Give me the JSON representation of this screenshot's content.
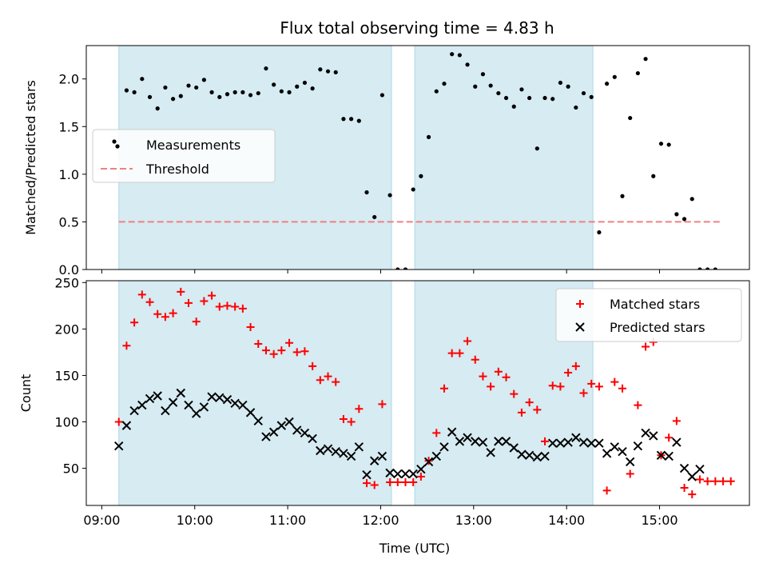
{
  "title": "Flux total observing time = 4.83 h",
  "colors": {
    "measurement": "#000000",
    "threshold": "#f08080",
    "matched": "#ff0000",
    "predicted": "#000000",
    "shade": "#add8e6"
  },
  "chart_data": [
    {
      "type": "scatter",
      "panel": "top",
      "ylabel": "Matched/Predicted stars",
      "xlim": [
        "08:50",
        "15:58"
      ],
      "ylim": [
        0,
        2.35
      ],
      "yticks": [
        "0.0",
        "0.5",
        "1.0",
        "1.5",
        "2.0"
      ],
      "shaded_intervals": [
        [
          "09:11",
          "12:07"
        ],
        [
          "12:22",
          "14:17"
        ]
      ],
      "threshold": {
        "name": "Threshold",
        "value": 0.5,
        "x_range": [
          "09:11",
          "15:40"
        ]
      },
      "legend": {
        "placement": "center-left",
        "entries": [
          "Measurements",
          "Threshold"
        ]
      },
      "series": [
        {
          "name": "Measurements",
          "marker": "dot",
          "x": [
            "09:16",
            "09:21",
            "09:26",
            "09:31",
            "09:36",
            "09:41",
            "09:46",
            "09:51",
            "09:56",
            "10:01",
            "10:06",
            "10:11",
            "10:16",
            "10:21",
            "10:26",
            "10:31",
            "10:36",
            "10:41",
            "10:46",
            "10:51",
            "10:56",
            "11:01",
            "11:06",
            "11:11",
            "11:16",
            "11:21",
            "11:26",
            "11:31",
            "11:36",
            "11:41",
            "11:46",
            "11:51",
            "11:56",
            "12:01",
            "12:06",
            "12:11",
            "12:16",
            "12:21",
            "12:26",
            "12:31",
            "12:36",
            "12:41",
            "12:46",
            "12:51",
            "12:56",
            "13:01",
            "13:06",
            "13:11",
            "13:16",
            "13:21",
            "13:26",
            "13:31",
            "13:36",
            "13:41",
            "13:46",
            "13:51",
            "13:56",
            "14:01",
            "14:06",
            "14:11",
            "14:16",
            "14:21",
            "14:26",
            "14:31",
            "14:36",
            "14:41",
            "14:46",
            "14:51",
            "14:56",
            "15:01",
            "15:06",
            "15:11",
            "15:16",
            "15:21",
            "15:26",
            "15:31",
            "15:36"
          ],
          "y": [
            1.88,
            1.86,
            2.0,
            1.81,
            1.69,
            1.91,
            1.79,
            1.82,
            1.93,
            1.91,
            1.99,
            1.86,
            1.81,
            1.84,
            1.86,
            1.86,
            1.83,
            1.85,
            2.11,
            1.94,
            1.87,
            1.86,
            1.92,
            1.96,
            1.9,
            2.1,
            2.08,
            2.07,
            1.58,
            1.58,
            1.56,
            0.81,
            0.55,
            1.83,
            0.78,
            0.0,
            0.0,
            0.84,
            0.98,
            1.39,
            1.87,
            1.95,
            2.26,
            2.25,
            2.15,
            1.92,
            2.05,
            1.93,
            1.85,
            1.8,
            1.71,
            1.89,
            1.8,
            1.27,
            1.8,
            1.79,
            1.96,
            1.92,
            1.7,
            1.85,
            1.81,
            0.39,
            1.95,
            2.02,
            0.77,
            1.59,
            2.06,
            2.21,
            0.98,
            1.32,
            1.31,
            0.58,
            0.53,
            0.74,
            0.0,
            0.0,
            0.0
          ]
        }
      ]
    },
    {
      "type": "scatter",
      "panel": "bottom",
      "xlabel": "Time (UTC)",
      "ylabel": "Count",
      "xlim": [
        "08:50",
        "15:58"
      ],
      "ylim": [
        10,
        252
      ],
      "xticks": [
        "09:00",
        "10:00",
        "11:00",
        "12:00",
        "13:00",
        "14:00",
        "15:00"
      ],
      "yticks": [
        "50",
        "100",
        "150",
        "200",
        "250"
      ],
      "shaded_intervals": [
        [
          "09:11",
          "12:07"
        ],
        [
          "12:22",
          "14:17"
        ]
      ],
      "legend": {
        "placement": "top-right",
        "entries": [
          "Matched stars",
          "Predicted stars"
        ]
      },
      "series": [
        {
          "name": "Matched stars",
          "marker": "plus",
          "x": [
            "09:11",
            "09:16",
            "09:21",
            "09:26",
            "09:31",
            "09:36",
            "09:41",
            "09:46",
            "09:51",
            "09:56",
            "10:01",
            "10:06",
            "10:11",
            "10:16",
            "10:21",
            "10:26",
            "10:31",
            "10:36",
            "10:41",
            "10:46",
            "10:51",
            "10:56",
            "11:01",
            "11:06",
            "11:11",
            "11:16",
            "11:21",
            "11:26",
            "11:31",
            "11:36",
            "11:41",
            "11:46",
            "11:51",
            "11:56",
            "12:01",
            "12:06",
            "12:11",
            "12:16",
            "12:21",
            "12:26",
            "12:31",
            "12:36",
            "12:41",
            "12:46",
            "12:51",
            "12:56",
            "13:01",
            "13:06",
            "13:11",
            "13:16",
            "13:21",
            "13:26",
            "13:31",
            "13:36",
            "13:41",
            "13:46",
            "13:51",
            "13:56",
            "14:01",
            "14:06",
            "14:11",
            "14:16",
            "14:21",
            "14:26",
            "14:31",
            "14:36",
            "14:41",
            "14:46",
            "14:51",
            "14:56",
            "15:01",
            "15:06",
            "15:11",
            "15:16",
            "15:21",
            "15:26",
            "15:31",
            "15:36",
            "15:41",
            "15:46"
          ],
          "y": [
            100,
            182,
            207,
            237,
            229,
            216,
            213,
            217,
            240,
            228,
            208,
            230,
            236,
            224,
            225,
            224,
            222,
            202,
            184,
            177,
            173,
            177,
            185,
            175,
            176,
            160,
            145,
            149,
            143,
            103,
            100,
            114,
            34,
            32,
            119,
            35,
            35,
            35,
            35,
            41,
            58,
            88,
            136,
            174,
            174,
            187,
            167,
            149,
            138,
            154,
            148,
            130,
            110,
            121,
            113,
            79,
            139,
            138,
            153,
            160,
            131,
            141,
            138,
            26,
            143,
            136,
            44,
            118,
            181,
            186,
            64,
            83,
            101,
            29,
            22,
            38,
            36,
            36,
            36,
            36
          ],
          "x_note": ""
        },
        {
          "name": "Predicted stars",
          "marker": "x",
          "x": [
            "09:11",
            "09:16",
            "09:21",
            "09:26",
            "09:31",
            "09:36",
            "09:41",
            "09:46",
            "09:51",
            "09:56",
            "10:01",
            "10:06",
            "10:11",
            "10:16",
            "10:21",
            "10:26",
            "10:31",
            "10:36",
            "10:41",
            "10:46",
            "10:51",
            "10:56",
            "11:01",
            "11:06",
            "11:11",
            "11:16",
            "11:21",
            "11:26",
            "11:31",
            "11:36",
            "11:41",
            "11:46",
            "11:51",
            "11:56",
            "12:01",
            "12:06",
            "12:11",
            "12:16",
            "12:21",
            "12:26",
            "12:31",
            "12:36",
            "12:41",
            "12:46",
            "12:51",
            "12:56",
            "13:01",
            "13:06",
            "13:11",
            "13:16",
            "13:21",
            "13:26",
            "13:31",
            "13:36",
            "13:41",
            "13:46",
            "13:51",
            "13:56",
            "14:01",
            "14:06",
            "14:11",
            "14:16",
            "14:21",
            "14:26",
            "14:31",
            "14:36",
            "14:41",
            "14:46",
            "14:51",
            "14:56",
            "15:01",
            "15:06",
            "15:11",
            "15:16",
            "15:21",
            "15:26"
          ],
          "y": [
            74,
            96,
            112,
            118,
            125,
            128,
            112,
            121,
            131,
            118,
            109,
            116,
            127,
            126,
            124,
            120,
            118,
            110,
            101,
            84,
            89,
            96,
            100,
            91,
            88,
            82,
            69,
            71,
            68,
            66,
            63,
            73,
            43,
            58,
            63,
            45,
            44,
            44,
            44,
            49,
            57,
            63,
            73,
            89,
            79,
            83,
            79,
            78,
            67,
            79,
            79,
            72,
            65,
            64,
            62,
            63,
            77,
            77,
            78,
            83,
            78,
            77,
            77,
            66,
            73,
            68,
            57,
            74,
            88,
            85,
            64,
            63,
            78,
            50,
            41,
            49
          ],
          "x_note": ""
        }
      ]
    }
  ]
}
